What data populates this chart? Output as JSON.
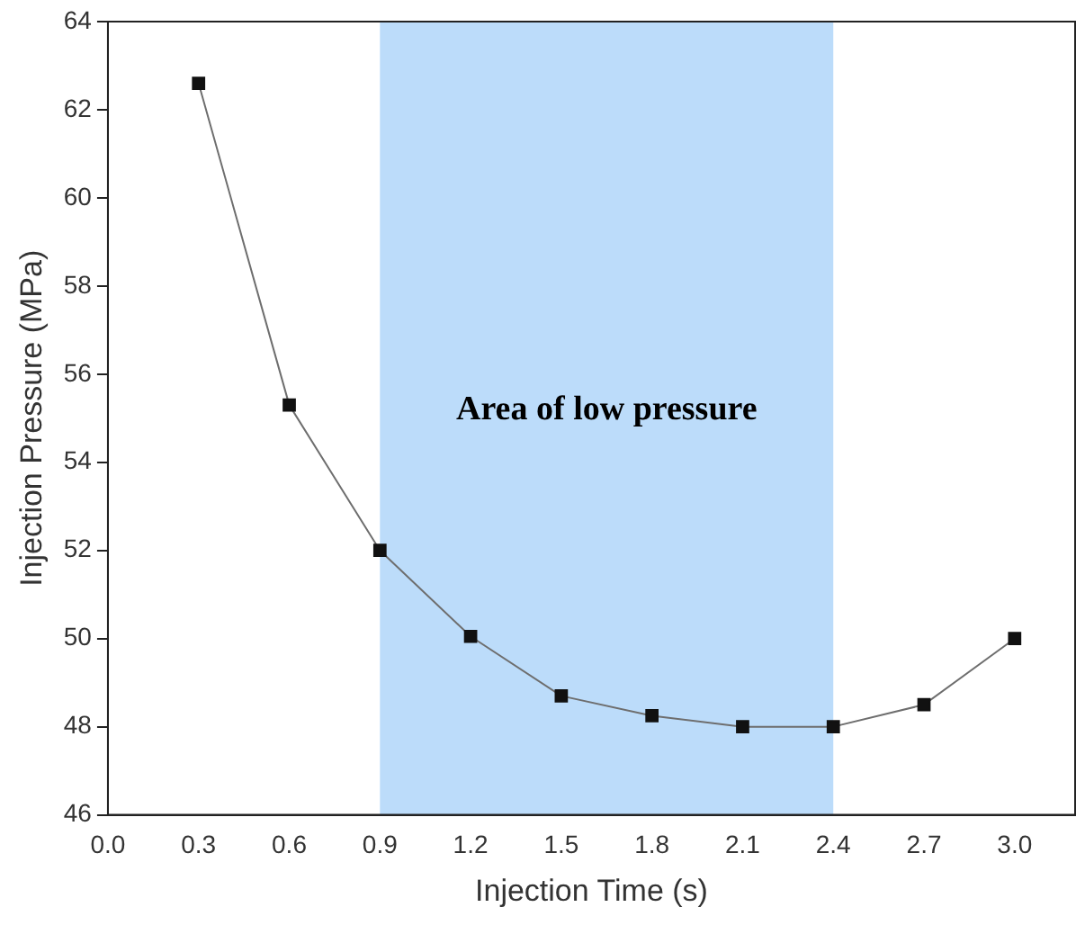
{
  "chart_data": {
    "type": "line",
    "xlabel": "Injection Time (s)",
    "ylabel": "Injection Pressure (MPa)",
    "x": [
      0.3,
      0.6,
      0.9,
      1.2,
      1.5,
      1.8,
      2.1,
      2.4,
      2.7,
      3.0
    ],
    "series": [
      {
        "color": "#111111",
        "values": [
          62.6,
          55.3,
          52.0,
          50.05,
          48.7,
          48.25,
          48.0,
          48.0,
          48.5,
          50.0
        ]
      }
    ],
    "xlim": [
      0,
      3.2
    ],
    "xticks": [
      {
        "value": 0,
        "label": "0.0"
      },
      {
        "value": 0.3,
        "label": "0.3"
      },
      {
        "value": 0.6,
        "label": "0.6"
      },
      {
        "value": 0.9,
        "label": "0.9"
      },
      {
        "value": 1.2,
        "label": "1.2"
      },
      {
        "value": 1.5,
        "label": "1.5"
      },
      {
        "value": 1.8,
        "label": "1.8"
      },
      {
        "value": 2.1,
        "label": "2.1"
      },
      {
        "value": 2.4,
        "label": "2.4"
      },
      {
        "value": 2.7,
        "label": "2.7"
      },
      {
        "value": 3.0,
        "label": "3.0"
      }
    ],
    "ylim": [
      46,
      64
    ],
    "yticks": [
      46,
      48,
      50,
      52,
      54,
      56,
      58,
      60,
      62,
      64
    ],
    "bands": [
      {
        "axis": "x",
        "from": 0.9,
        "to": 2.4,
        "label": "Area of low pressure",
        "color": "#bcdcfa"
      }
    ],
    "grid": false,
    "legend": false,
    "marker": "square",
    "line_style": "solid"
  }
}
